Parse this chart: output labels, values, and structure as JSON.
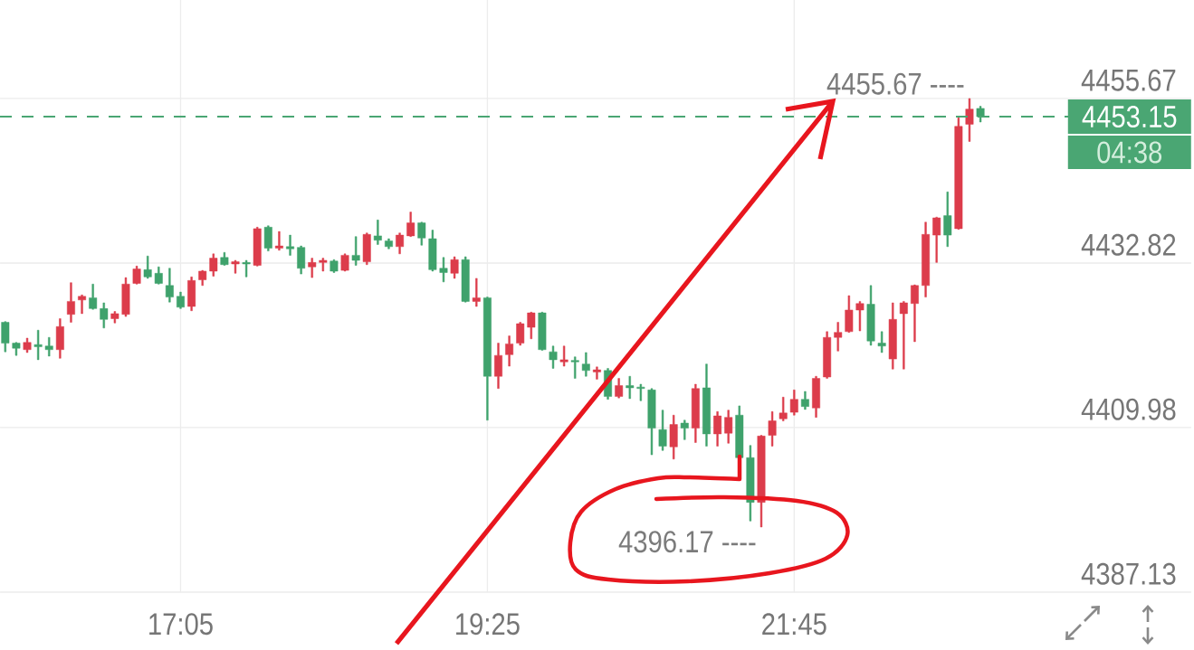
{
  "chart_data": {
    "type": "candlestick",
    "x": [
      15.75,
      15.8333,
      15.9167,
      16.0,
      16.0833,
      16.1667,
      16.25,
      16.3333,
      16.4167,
      16.5,
      16.5833,
      16.6667,
      16.75,
      16.8333,
      16.9167,
      17.0,
      17.0833,
      17.1667,
      17.25,
      17.3333,
      17.4167,
      17.5,
      17.5833,
      17.6667,
      17.75,
      17.8333,
      17.9167,
      18.0,
      18.0833,
      18.1667,
      18.25,
      18.3333,
      18.4167,
      18.5,
      18.5833,
      18.6667,
      18.75,
      18.8333,
      18.9167,
      19.0,
      19.0833,
      19.1667,
      19.25,
      19.3333,
      19.4167,
      19.5,
      19.5833,
      19.6667,
      19.75,
      19.8333,
      19.9167,
      20.0,
      20.0833,
      20.1667,
      20.25,
      20.3333,
      20.4167,
      20.5,
      20.5833,
      20.6667,
      20.75,
      20.8333,
      20.9167,
      21.0,
      21.0833,
      21.1667,
      21.25,
      21.3333,
      21.4167,
      21.5,
      21.5833,
      21.6667,
      21.75,
      21.8333,
      21.9167,
      22.0,
      22.0833,
      22.1667,
      22.25,
      22.3333,
      22.4167,
      22.5,
      22.5833,
      22.6667,
      22.75,
      22.8333,
      22.9167,
      23.0,
      23.0833,
      23.1667
    ],
    "ohlc": [
      [
        4424.6,
        4424.7,
        4420.5,
        4421.7
      ],
      [
        4421.7,
        4421.8,
        4420.0,
        4421.0
      ],
      [
        4420.8,
        4422.4,
        4420.4,
        4421.8
      ],
      [
        4421.5,
        4423.5,
        4419.4,
        4421.2
      ],
      [
        4421.3,
        4422.5,
        4419.9,
        4420.8
      ],
      [
        4420.8,
        4425.1,
        4419.6,
        4424.0
      ],
      [
        4425.7,
        4430.1,
        4424.6,
        4427.5
      ],
      [
        4427.7,
        4428.4,
        4425.8,
        4428.2
      ],
      [
        4428.0,
        4429.9,
        4426.4,
        4426.5
      ],
      [
        4426.5,
        4427.3,
        4423.8,
        4425.0
      ],
      [
        4425.1,
        4426.1,
        4424.5,
        4425.8
      ],
      [
        4425.7,
        4430.8,
        4425.4,
        4429.9
      ],
      [
        4430.0,
        4432.4,
        4429.9,
        4432.0
      ],
      [
        4431.9,
        4433.8,
        4430.7,
        4430.9
      ],
      [
        4431.4,
        4432.3,
        4429.9,
        4430.0
      ],
      [
        4429.7,
        4432.1,
        4427.4,
        4428.1
      ],
      [
        4428.2,
        4428.8,
        4426.5,
        4426.7
      ],
      [
        4426.8,
        4430.9,
        4426.2,
        4430.4
      ],
      [
        4430.5,
        4431.8,
        4429.7,
        4431.7
      ],
      [
        4431.7,
        4434.1,
        4431.0,
        4433.5
      ],
      [
        4433.6,
        4434.3,
        4432.5,
        4432.6
      ],
      [
        4432.7,
        4433.2,
        4431.4,
        4433.0
      ],
      [
        4432.9,
        4433.2,
        4430.9,
        4432.7
      ],
      [
        4432.5,
        4437.8,
        4432.4,
        4437.6
      ],
      [
        4437.8,
        4438.0,
        4434.5,
        4434.9
      ],
      [
        4434.9,
        4437.2,
        4434.6,
        4435.2
      ],
      [
        4435.1,
        4436.7,
        4433.9,
        4434.8
      ],
      [
        4435.0,
        4435.2,
        4431.3,
        4432.1
      ],
      [
        4432.3,
        4433.5,
        4430.8,
        4432.9
      ],
      [
        4432.9,
        4433.5,
        4431.7,
        4433.2
      ],
      [
        4433.1,
        4433.3,
        4431.5,
        4431.7
      ],
      [
        4431.8,
        4434.1,
        4431.7,
        4433.9
      ],
      [
        4433.9,
        4436.5,
        4432.5,
        4433.2
      ],
      [
        4433.0,
        4437.0,
        4432.6,
        4436.8
      ],
      [
        4436.6,
        4438.8,
        4435.4,
        4436.0
      ],
      [
        4435.9,
        4436.2,
        4434.8,
        4435.1
      ],
      [
        4435.1,
        4437.0,
        4434.1,
        4436.7
      ],
      [
        4436.6,
        4439.9,
        4436.5,
        4438.4
      ],
      [
        4438.4,
        4438.5,
        4435.3,
        4436.3
      ],
      [
        4436.2,
        4437.4,
        4431.7,
        4431.9
      ],
      [
        4432.1,
        4433.6,
        4430.2,
        4431.5
      ],
      [
        4431.4,
        4433.7,
        4430.7,
        4433.3
      ],
      [
        4433.3,
        4433.7,
        4427.4,
        4427.5
      ],
      [
        4427.5,
        4430.7,
        4426.8,
        4428.0
      ],
      [
        4428.0,
        4428.1,
        4411.0,
        4417.1
      ],
      [
        4417.1,
        4421.7,
        4415.4,
        4420.0
      ],
      [
        4420.1,
        4422.7,
        4418.5,
        4421.6
      ],
      [
        4421.7,
        4424.6,
        4421.4,
        4424.4
      ],
      [
        4423.9,
        4426.0,
        4422.3,
        4425.9
      ],
      [
        4425.9,
        4426.0,
        4420.7,
        4420.8
      ],
      [
        4420.5,
        4421.3,
        4418.2,
        4419.4
      ],
      [
        4419.1,
        4421.3,
        4418.5,
        4419.4
      ],
      [
        4419.3,
        4419.8,
        4416.8,
        4419.1
      ],
      [
        4418.8,
        4420.4,
        4417.1,
        4417.9
      ],
      [
        4417.7,
        4418.4,
        4416.7,
        4418.0
      ],
      [
        4417.9,
        4418.2,
        4413.9,
        4414.3
      ],
      [
        4414.3,
        4416.8,
        4414.1,
        4415.8
      ],
      [
        4415.8,
        4417.1,
        4414.0,
        4415.5
      ],
      [
        4415.6,
        4416.0,
        4413.7,
        4415.4
      ],
      [
        4415.2,
        4415.4,
        4406.2,
        4409.9
      ],
      [
        4409.7,
        4412.4,
        4406.8,
        4407.4
      ],
      [
        4407.3,
        4411.7,
        4405.6,
        4410.4
      ],
      [
        4410.6,
        4411.0,
        4408.3,
        4409.9
      ],
      [
        4409.9,
        4416.0,
        4407.9,
        4415.4
      ],
      [
        4415.5,
        4418.8,
        4407.4,
        4409.1
      ],
      [
        4409.1,
        4412.2,
        4407.4,
        4411.6
      ],
      [
        4409.2,
        4412.4,
        4407.8,
        4411.4
      ],
      [
        4411.7,
        4413.0,
        4405.5,
        4405.8
      ],
      [
        4405.8,
        4407.5,
        4397.0,
        4399.6
      ],
      [
        4399.6,
        4408.9,
        4396.17,
        4408.8
      ],
      [
        4408.9,
        4412.2,
        4407.4,
        4410.9
      ],
      [
        4411.2,
        4414.2,
        4410.9,
        4412.0
      ],
      [
        4412.1,
        4415.2,
        4411.7,
        4413.9
      ],
      [
        4413.9,
        4415.0,
        4412.5,
        4412.9
      ],
      [
        4412.7,
        4417.1,
        4411.4,
        4416.8
      ],
      [
        4417.0,
        4423.3,
        4416.8,
        4422.5
      ],
      [
        4422.5,
        4424.6,
        4420.6,
        4423.2
      ],
      [
        4423.3,
        4428.3,
        4423.2,
        4426.3
      ],
      [
        4426.3,
        4427.5,
        4423.4,
        4427.2
      ],
      [
        4427.1,
        4429.7,
        4421.4,
        4422.0
      ],
      [
        4421.7,
        4423.3,
        4420.4,
        4421.3
      ],
      [
        4419.5,
        4427.3,
        4418.1,
        4425.0
      ],
      [
        4425.8,
        4427.5,
        4418.1,
        4427.3
      ],
      [
        4427.2,
        4429.8,
        4421.9,
        4429.7
      ],
      [
        4429.7,
        4438.5,
        4428.1,
        4436.8
      ],
      [
        4436.7,
        4439.2,
        4432.9,
        4439.1
      ],
      [
        4439.4,
        4442.7,
        4435.1,
        4436.7
      ],
      [
        4437.6,
        4453.0,
        4437.5,
        4451.8
      ],
      [
        4452.1,
        4455.67,
        4449.7,
        4454.2
      ],
      [
        4454.3,
        4454.6,
        4452.4,
        4453.15
      ]
    ],
    "colors": [
      "#3fa26c",
      "#3fa26c",
      "#dc3c4b",
      "#3fa26c",
      "#3fa26c",
      "#dc3c4b",
      "#dc3c4b",
      "#dc3c4b",
      "#3fa26c",
      "#3fa26c",
      "#dc3c4b",
      "#dc3c4b",
      "#dc3c4b",
      "#3fa26c",
      "#3fa26c",
      "#3fa26c",
      "#3fa26c",
      "#dc3c4b",
      "#dc3c4b",
      "#dc3c4b",
      "#3fa26c",
      "#dc3c4b",
      "#3fa26c",
      "#dc3c4b",
      "#3fa26c",
      "#dc3c4b",
      "#3fa26c",
      "#3fa26c",
      "#dc3c4b",
      "#dc3c4b",
      "#3fa26c",
      "#dc3c4b",
      "#3fa26c",
      "#dc3c4b",
      "#3fa26c",
      "#3fa26c",
      "#dc3c4b",
      "#dc3c4b",
      "#3fa26c",
      "#3fa26c",
      "#3fa26c",
      "#dc3c4b",
      "#3fa26c",
      "#dc3c4b",
      "#3fa26c",
      "#dc3c4b",
      "#dc3c4b",
      "#dc3c4b",
      "#dc3c4b",
      "#3fa26c",
      "#3fa26c",
      "#dc3c4b",
      "#3fa26c",
      "#3fa26c",
      "#dc3c4b",
      "#3fa26c",
      "#dc3c4b",
      "#3fa26c",
      "#3fa26c",
      "#3fa26c",
      "#3fa26c",
      "#dc3c4b",
      "#3fa26c",
      "#dc3c4b",
      "#3fa26c",
      "#dc3c4b",
      "#dc3c4b",
      "#3fa26c",
      "#3fa26c",
      "#dc3c4b",
      "#dc3c4b",
      "#dc3c4b",
      "#dc3c4b",
      "#3fa26c",
      "#dc3c4b",
      "#dc3c4b",
      "#dc3c4b",
      "#dc3c4b",
      "#dc3c4b",
      "#3fa26c",
      "#3fa26c",
      "#dc3c4b",
      "#dc3c4b",
      "#dc3c4b",
      "#dc3c4b",
      "#dc3c4b",
      "#3fa26c",
      "#dc3c4b",
      "#dc3c4b",
      "#3fa26c"
    ],
    "xlim": [
      15.71,
      24.77
    ],
    "ylim": [
      4387.13,
      4469.35
    ],
    "xticks": [
      {
        "value": 17.0833,
        "label": "17:05"
      },
      {
        "value": 19.4167,
        "label": "19:25"
      },
      {
        "value": 21.75,
        "label": "21:45"
      }
    ],
    "yticks": [
      4387.13,
      4409.98,
      4432.82,
      4455.67
    ],
    "grid": true,
    "ref_lines": [
      {
        "axis": "y",
        "value": 4453.15,
        "label": "4453.15",
        "color": "#4aa673",
        "line_style": "dashed"
      }
    ],
    "annotations": [
      {
        "text": "4455.67 ----",
        "x": 23.0833,
        "y": 4455.67
      },
      {
        "text": "4396.17 ----",
        "x": 21.5,
        "y": 4396.17
      },
      "04:38"
    ]
  }
}
